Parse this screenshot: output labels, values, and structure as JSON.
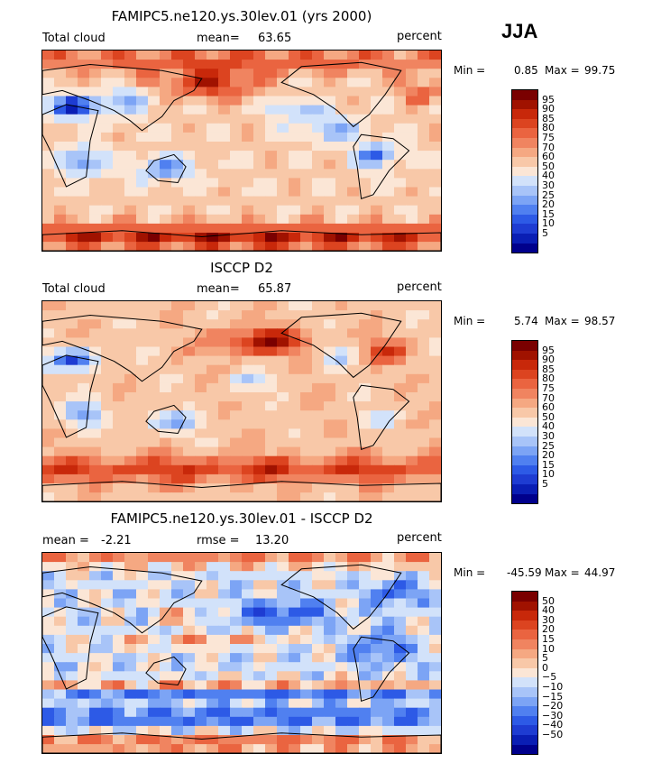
{
  "season": "JJA",
  "colors": {
    "total_cloud": [
      "#00008c",
      "#0a1eb4",
      "#1e3cd2",
      "#2d5ae6",
      "#5080f0",
      "#7ca4f5",
      "#a8c4f8",
      "#d2e2fa",
      "#fbe6d6",
      "#f8c8a8",
      "#f5a882",
      "#f08460",
      "#ea6440",
      "#dc4420",
      "#c8280a",
      "#a01200",
      "#7a0000"
    ],
    "difference": [
      "#00008c",
      "#0a1eb4",
      "#1e3cd2",
      "#2d5ae6",
      "#5080f0",
      "#7ca4f5",
      "#a8c4f8",
      "#d2e2fa",
      "#fbe6d6",
      "#f8c8a8",
      "#f5a882",
      "#f08460",
      "#ea6440",
      "#dc4420",
      "#c8280a",
      "#a01200",
      "#7a0000"
    ]
  },
  "panels": [
    {
      "title": "FAMIPC5.ne120.ys.30lev.01 (yrs 2000)",
      "left_label": "Total cloud",
      "mean_label": "mean=",
      "mean_value": "63.65",
      "right_label": "percent",
      "min_label": "Min =",
      "min_value": "0.85",
      "max_label": "Max =",
      "max_value": "99.75"
    },
    {
      "title": "ISCCP D2",
      "left_label": "Total cloud",
      "mean_label": "mean=",
      "mean_value": "65.87",
      "right_label": "percent",
      "min_label": "Min =",
      "min_value": "5.74",
      "max_label": "Max =",
      "max_value": "98.57"
    },
    {
      "title": "FAMIPC5.ne120.ys.30lev.01 - ISCCP D2",
      "left_label": "mean =",
      "left_value": "-2.21",
      "mean_label": "rmse =",
      "mean_value": "13.20",
      "right_label": "percent",
      "min_label": "Min =",
      "min_value": "-45.59",
      "max_label": "Max =",
      "max_value": "44.97"
    }
  ],
  "chart_data": [
    {
      "type": "heatmap",
      "title": "FAMIPC5.ne120.ys.30lev.01 (yrs 2000)",
      "variable": "Total cloud",
      "units": "percent",
      "mean": 63.65,
      "min": 0.85,
      "max": 99.75,
      "colorbar_levels": [
        "95",
        "90",
        "85",
        "80",
        "75",
        "70",
        "60",
        "50",
        "40",
        "30",
        "25",
        "20",
        "15",
        "10",
        "5"
      ]
    },
    {
      "type": "heatmap",
      "title": "ISCCP D2",
      "variable": "Total cloud",
      "units": "percent",
      "mean": 65.87,
      "min": 5.74,
      "max": 98.57,
      "colorbar_levels": [
        "95",
        "90",
        "85",
        "80",
        "75",
        "70",
        "60",
        "50",
        "40",
        "30",
        "25",
        "20",
        "15",
        "10",
        "5"
      ]
    },
    {
      "type": "heatmap",
      "title": "FAMIPC5.ne120.ys.30lev.01 - ISCCP D2",
      "units": "percent",
      "mean": -2.21,
      "rmse": 13.2,
      "min": -45.59,
      "max": 44.97,
      "colorbar_levels": [
        "50",
        "40",
        "30",
        "20",
        "15",
        "10",
        "5",
        "0",
        "−5",
        "−10",
        "−15",
        "−20",
        "−30",
        "−40",
        "−50"
      ]
    }
  ]
}
